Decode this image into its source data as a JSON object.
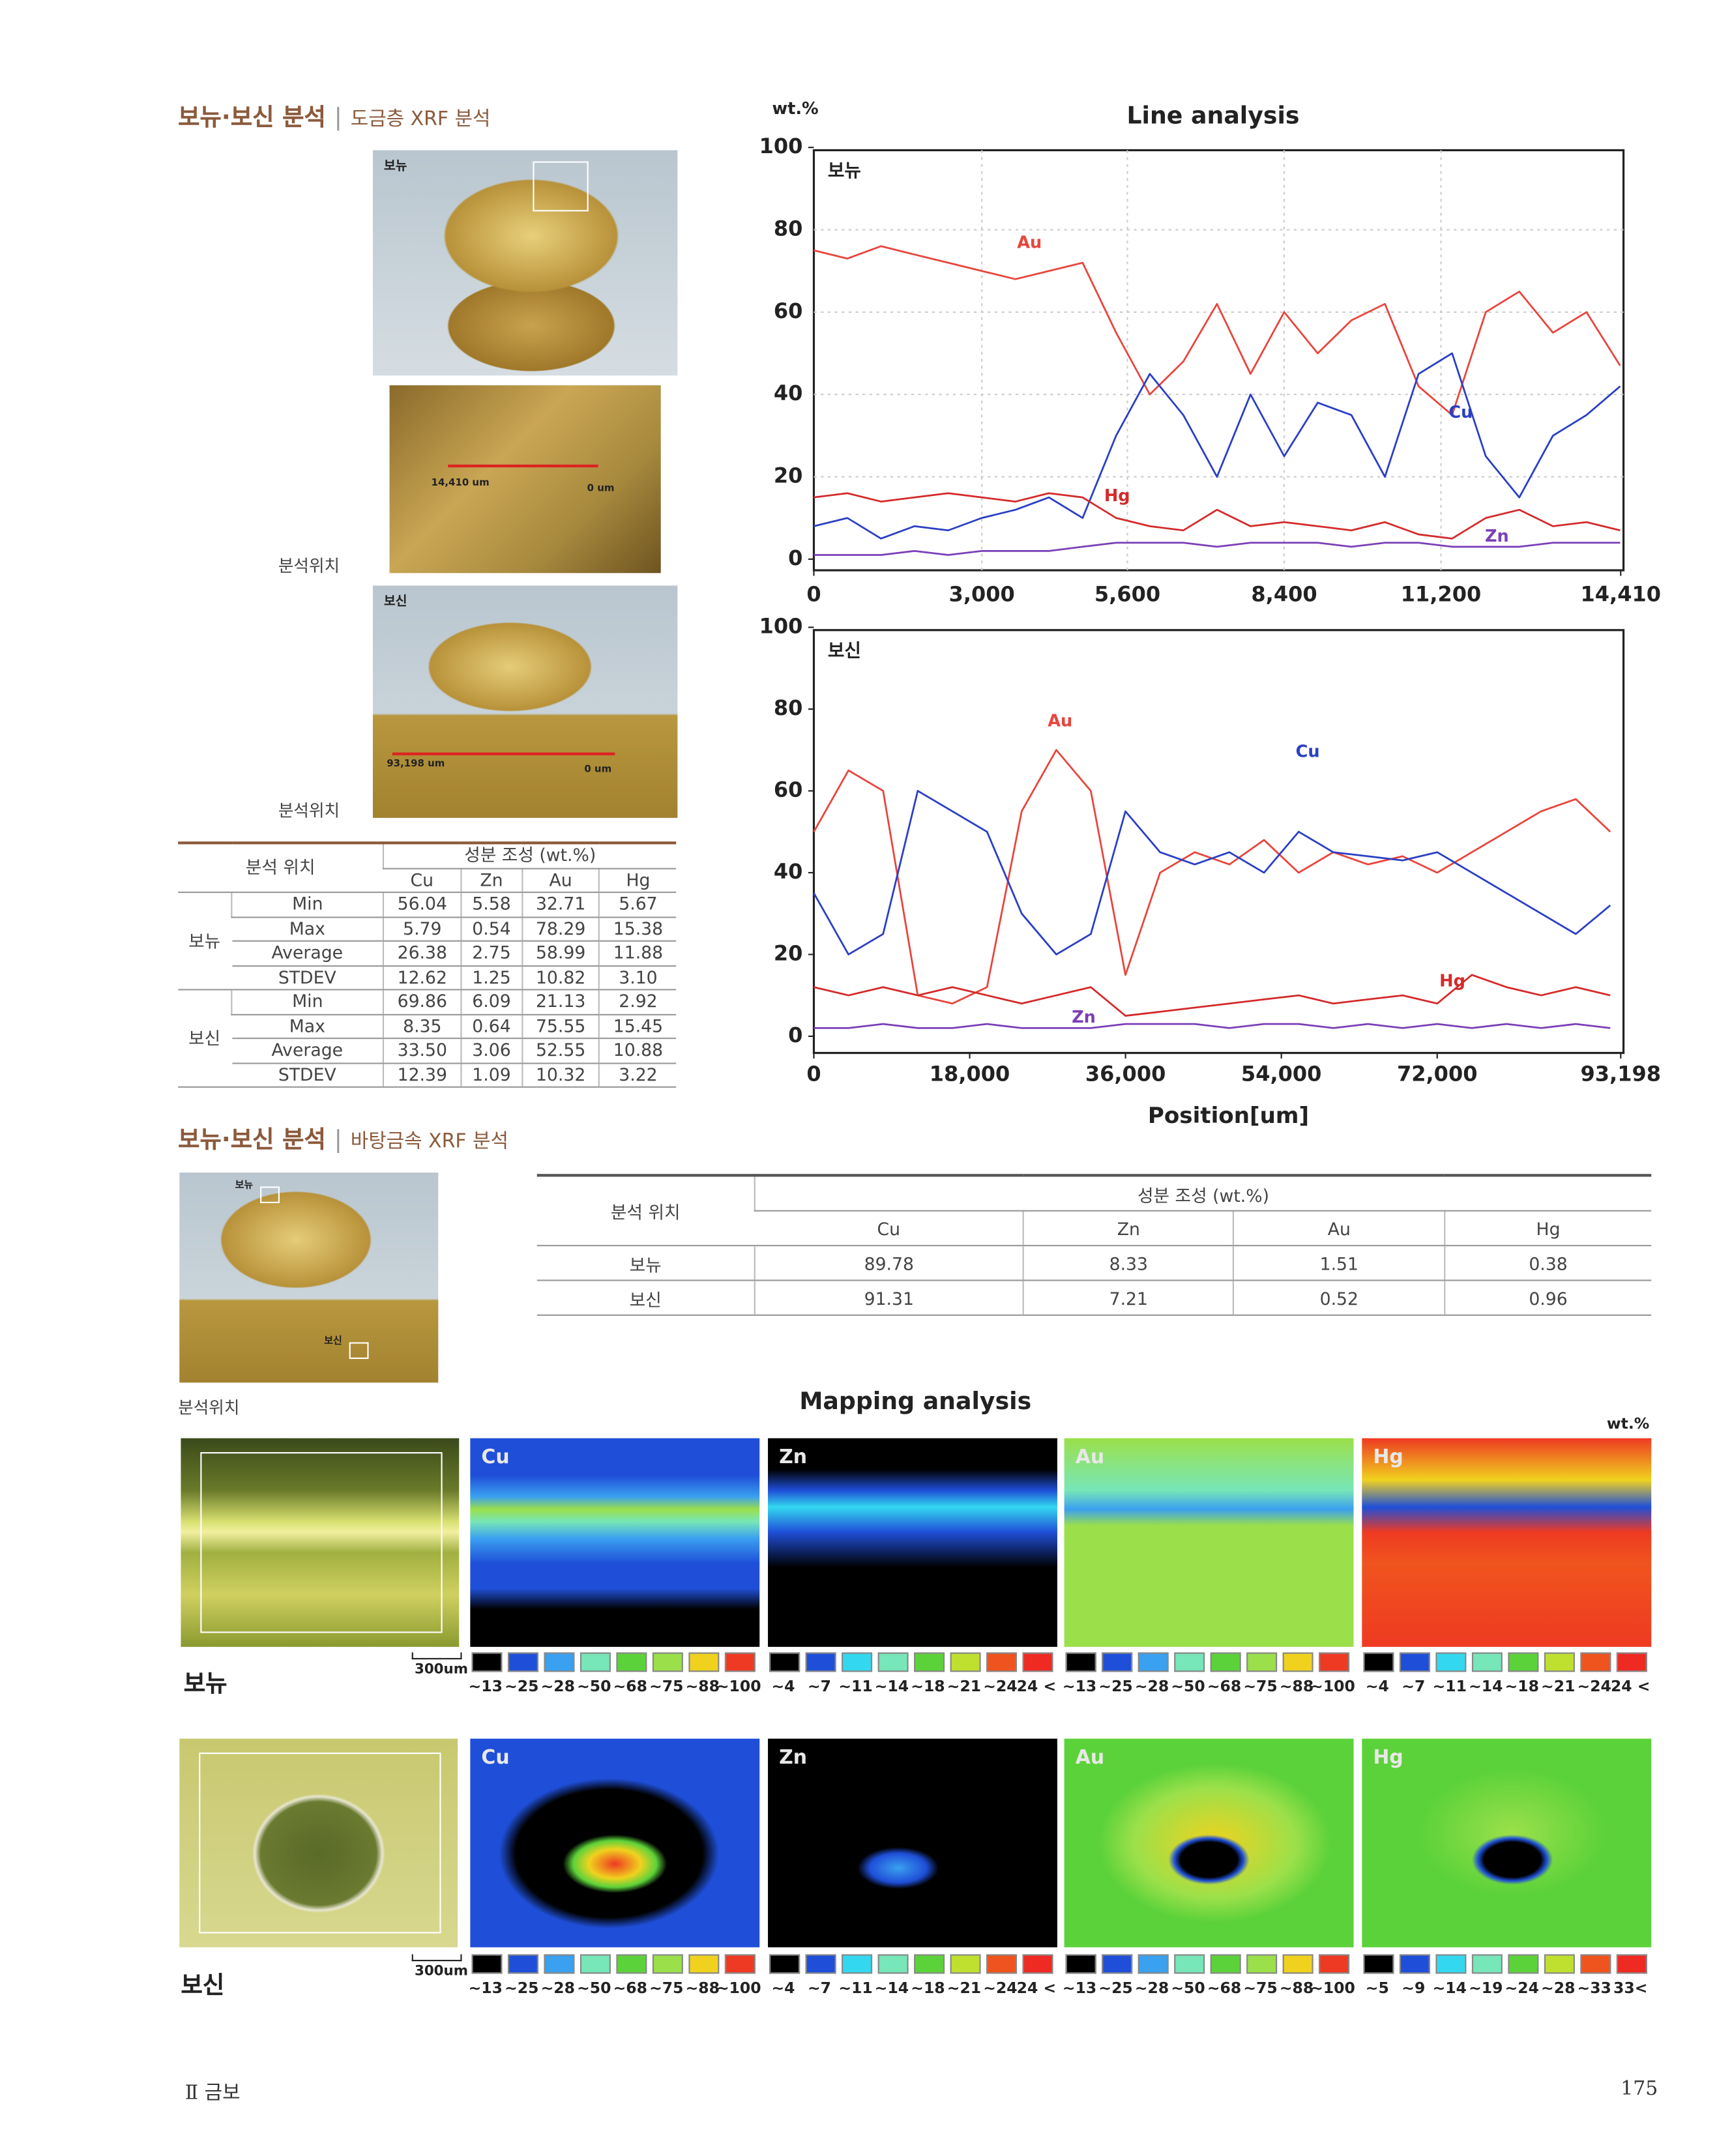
{
  "section1": {
    "title": "보뉴·보신 분석",
    "subtitle": "도금층 XRF 분석",
    "photos": [
      {
        "label": "보뉴"
      },
      {
        "start": "14,410 um",
        "end": "0 um"
      },
      {
        "label": "보신",
        "start": "93,198 um",
        "end": "0 um"
      }
    ],
    "position_labels": [
      "분석위치",
      "분석위치"
    ],
    "table": {
      "header": [
        "분석 위치",
        "성분 조성 (wt.%)"
      ],
      "columns": [
        "Cu",
        "Zn",
        "Au",
        "Hg"
      ],
      "groups": [
        {
          "name": "보뉴",
          "rows": [
            {
              "stat": "Min",
              "values": [
                "56.04",
                "5.58",
                "32.71",
                "5.67"
              ]
            },
            {
              "stat": "Max",
              "values": [
                "5.79",
                "0.54",
                "78.29",
                "15.38"
              ]
            },
            {
              "stat": "Average",
              "values": [
                "26.38",
                "2.75",
                "58.99",
                "11.88"
              ]
            },
            {
              "stat": "STDEV",
              "values": [
                "12.62",
                "1.25",
                "10.82",
                "3.10"
              ]
            }
          ]
        },
        {
          "name": "보신",
          "rows": [
            {
              "stat": "Min",
              "values": [
                "69.86",
                "6.09",
                "21.13",
                "2.92"
              ]
            },
            {
              "stat": "Max",
              "values": [
                "8.35",
                "0.64",
                "75.55",
                "15.45"
              ]
            },
            {
              "stat": "Average",
              "values": [
                "33.50",
                "3.06",
                "52.55",
                "10.88"
              ]
            },
            {
              "stat": "STDEV",
              "values": [
                "12.39",
                "1.09",
                "10.32",
                "3.22"
              ]
            }
          ]
        }
      ]
    }
  },
  "line_analysis": {
    "title": "Line analysis",
    "y_unit": "wt.%",
    "x_label": "Position[um]"
  },
  "chart_data": [
    {
      "type": "line",
      "panel_label": "보뉴",
      "xlim": [
        0,
        14410
      ],
      "ylim": [
        0,
        100
      ],
      "yticks": [
        0,
        20,
        40,
        60,
        80,
        100
      ],
      "xticks": [
        0,
        {
          "value": 3000,
          "label": "3,000"
        },
        {
          "value": 5600,
          "label": "5,600"
        },
        {
          "value": 8400,
          "label": "8,400"
        },
        {
          "value": 11200,
          "label": "11,200"
        },
        {
          "value": 14410,
          "label": "14,410"
        }
      ],
      "grid": true,
      "x": [
        0,
        600,
        1200,
        1800,
        2400,
        3000,
        3600,
        4200,
        4800,
        5400,
        6000,
        6600,
        7200,
        7800,
        8400,
        9000,
        9600,
        10200,
        10800,
        11400,
        12000,
        12600,
        13200,
        13800,
        14400
      ],
      "series": [
        {
          "name": "Au",
          "color": "#e8453c",
          "values": [
            75,
            73,
            76,
            74,
            72,
            70,
            68,
            70,
            72,
            55,
            40,
            48,
            62,
            45,
            60,
            50,
            58,
            62,
            42,
            35,
            60,
            65,
            55,
            60,
            47
          ]
        },
        {
          "name": "Cu",
          "color": "#2a3fc4",
          "values": [
            8,
            10,
            5,
            8,
            7,
            10,
            12,
            15,
            10,
            30,
            45,
            35,
            20,
            40,
            25,
            38,
            35,
            20,
            45,
            50,
            25,
            15,
            30,
            35,
            42
          ]
        },
        {
          "name": "Hg",
          "color": "#d42a2a",
          "values": [
            15,
            16,
            14,
            15,
            16,
            15,
            14,
            16,
            15,
            10,
            8,
            7,
            12,
            8,
            9,
            8,
            7,
            9,
            6,
            5,
            10,
            12,
            8,
            9,
            7
          ]
        },
        {
          "name": "Zn",
          "color": "#7b3fb8",
          "values": [
            1,
            1,
            1,
            2,
            1,
            2,
            2,
            2,
            3,
            4,
            4,
            4,
            3,
            4,
            4,
            4,
            3,
            4,
            4,
            3,
            3,
            3,
            4,
            4,
            4
          ]
        }
      ]
    },
    {
      "type": "line",
      "panel_label": "보신",
      "xlim": [
        0,
        93198
      ],
      "ylim": [
        0,
        100
      ],
      "yticks": [
        0,
        20,
        40,
        60,
        80,
        100
      ],
      "xticks": [
        0,
        {
          "value": 18000,
          "label": "18,000"
        },
        {
          "value": 36000,
          "label": "36,000"
        },
        {
          "value": 54000,
          "label": "54,000"
        },
        {
          "value": 72000,
          "label": "72,000"
        },
        {
          "value": 93198,
          "label": "93,198"
        }
      ],
      "grid": false,
      "x": [
        0,
        4000,
        8000,
        12000,
        16000,
        20000,
        24000,
        28000,
        32000,
        36000,
        40000,
        44000,
        48000,
        52000,
        56000,
        60000,
        64000,
        68000,
        72000,
        76000,
        80000,
        84000,
        88000,
        92000
      ],
      "series": [
        {
          "name": "Au",
          "color": "#e8453c",
          "values": [
            50,
            65,
            60,
            10,
            8,
            12,
            55,
            70,
            60,
            15,
            40,
            45,
            42,
            48,
            40,
            45,
            42,
            44,
            40,
            45,
            50,
            55,
            58,
            50
          ]
        },
        {
          "name": "Cu",
          "color": "#2a3fc4",
          "values": [
            35,
            20,
            25,
            60,
            55,
            50,
            30,
            20,
            25,
            55,
            45,
            42,
            45,
            40,
            50,
            45,
            44,
            43,
            45,
            40,
            35,
            30,
            25,
            32
          ]
        },
        {
          "name": "Hg",
          "color": "#d42a2a",
          "values": [
            12,
            10,
            12,
            10,
            12,
            10,
            8,
            10,
            12,
            5,
            6,
            7,
            8,
            9,
            10,
            8,
            9,
            10,
            8,
            15,
            12,
            10,
            12,
            10
          ]
        },
        {
          "name": "Zn",
          "color": "#7b3fb8",
          "values": [
            2,
            2,
            3,
            2,
            2,
            3,
            2,
            2,
            2,
            3,
            3,
            3,
            2,
            3,
            3,
            2,
            3,
            2,
            3,
            2,
            3,
            2,
            3,
            2
          ]
        }
      ]
    }
  ],
  "section2": {
    "title": "보뉴·보신 분석",
    "subtitle": "바탕금속 XRF 분석",
    "photo": {
      "top": "보뉴",
      "bottom": "보신"
    },
    "position_label": "분석위치",
    "table": {
      "header": [
        "분석 위치",
        "성분 조성 (wt.%)"
      ],
      "columns": [
        "Cu",
        "Zn",
        "Au",
        "Hg"
      ],
      "rows": [
        {
          "name": "보뉴",
          "values": [
            "89.78",
            "8.33",
            "1.51",
            "0.38"
          ]
        },
        {
          "name": "보신",
          "values": [
            "91.31",
            "7.21",
            "0.52",
            "0.96"
          ]
        }
      ]
    }
  },
  "mapping": {
    "title": "Mapping analysis",
    "unit": "wt.%",
    "rows": [
      {
        "label": "보뉴",
        "scale": "300um",
        "panels": [
          {
            "element": "Cu",
            "legend": [
              "~13",
              "~25",
              "~28",
              "~50",
              "~68",
              "~75",
              "~88",
              "~100"
            ]
          },
          {
            "element": "Zn",
            "legend": [
              "~4",
              "~7",
              "~11",
              "~14",
              "~18",
              "~21",
              "~24",
              "24 <"
            ]
          },
          {
            "element": "Au",
            "legend": [
              "~13",
              "~25",
              "~28",
              "~50",
              "~68",
              "~75",
              "~88",
              "~100"
            ]
          },
          {
            "element": "Hg",
            "legend": [
              "~4",
              "~7",
              "~11",
              "~14",
              "~18",
              "~21",
              "~24",
              "24 <"
            ]
          }
        ]
      },
      {
        "label": "보신",
        "scale": "300um",
        "panels": [
          {
            "element": "Cu",
            "legend": [
              "~13",
              "~25",
              "~28",
              "~50",
              "~68",
              "~75",
              "~88",
              "~100"
            ]
          },
          {
            "element": "Zn",
            "legend": [
              "~4",
              "~7",
              "~11",
              "~14",
              "~18",
              "~21",
              "~24",
              "24 <"
            ]
          },
          {
            "element": "Au",
            "legend": [
              "~13",
              "~25",
              "~28",
              "~50",
              "~68",
              "~75",
              "~88",
              "~100"
            ]
          },
          {
            "element": "Hg",
            "legend": [
              "~5",
              "~9",
              "~14",
              "~19",
              "~24",
              "~28",
              "~33",
              "33<"
            ]
          }
        ]
      }
    ]
  },
  "footer": {
    "chapter": "Ⅱ 금보",
    "page": "175"
  }
}
